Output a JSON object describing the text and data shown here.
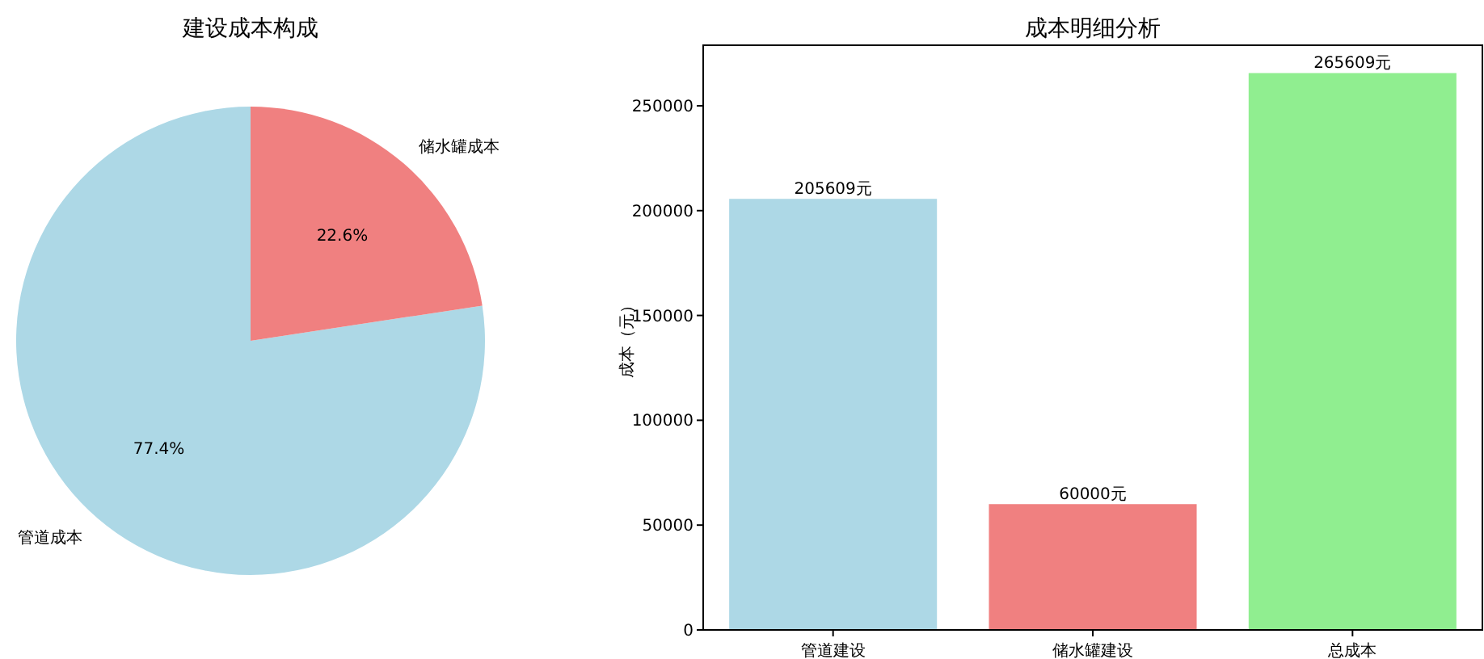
{
  "chart_data": [
    {
      "type": "pie",
      "title": "建设成本构成",
      "categories": [
        "管道成本",
        "储水罐成本"
      ],
      "values": [
        77.4,
        22.6
      ],
      "colors": [
        "#add8e6",
        "#f08080"
      ],
      "value_labels": [
        "77.4%",
        "22.6%"
      ]
    },
    {
      "type": "bar",
      "title": "成本明细分析",
      "ylabel": "成本（元）",
      "categories": [
        "管道建设",
        "储水罐建设",
        "总成本"
      ],
      "values": [
        205609,
        60000,
        265609
      ],
      "colors": [
        "#add8e6",
        "#f08080",
        "#90ee90"
      ],
      "value_labels": [
        "205609元",
        "60000元",
        "265609元"
      ],
      "ylim": [
        0,
        278889
      ],
      "yticks": [
        0,
        50000,
        100000,
        150000,
        200000,
        250000
      ],
      "grid": false
    }
  ]
}
